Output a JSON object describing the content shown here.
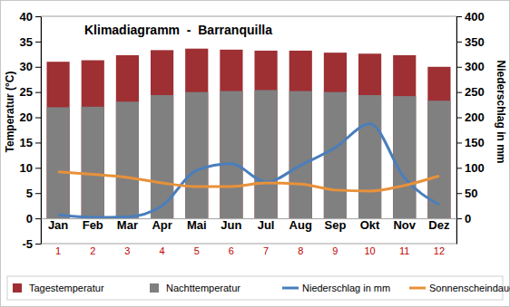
{
  "chart_data": {
    "type": "bar",
    "title": "Klimadiagramm  -  Barranquilla",
    "y_label": "Temperatur (°C)",
    "y2_label": "Niederschlag in mm",
    "categories": [
      "Jan",
      "Feb",
      "Mar",
      "Apr",
      "Mai",
      "Jun",
      "Jul",
      "Aug",
      "Sep",
      "Okt",
      "Nov",
      "Dez"
    ],
    "category_numbers": [
      1,
      2,
      3,
      4,
      5,
      6,
      7,
      8,
      9,
      10,
      11,
      12
    ],
    "ylim": [
      -5,
      40
    ],
    "yticks": [
      -5,
      0,
      5,
      10,
      15,
      20,
      25,
      30,
      35,
      40
    ],
    "y2lim": [
      -50,
      400
    ],
    "y2ticks": [
      0,
      50,
      100,
      150,
      200,
      250,
      300,
      350,
      400
    ],
    "grid": false,
    "stacked": false,
    "legend": "bottom",
    "series": [
      {
        "name": "Tagestemperatur",
        "type": "bar",
        "color": "#9e2f33",
        "values": [
          31,
          31.3,
          32.3,
          33.3,
          33.6,
          33.4,
          33.2,
          33.2,
          32.8,
          32.6,
          32.3,
          30
        ]
      },
      {
        "name": "Nachttemperatur",
        "type": "bar",
        "color": "#808080",
        "values": [
          22,
          22.1,
          23.1,
          24.4,
          25,
          25.2,
          25.4,
          25.2,
          25,
          24.4,
          24.2,
          23.3
        ]
      },
      {
        "name": "Niederschlag in mm",
        "type": "line",
        "axis": "y2",
        "color": "#4a7ebb",
        "values": [
          7,
          2,
          3,
          25,
          95,
          108,
          72,
          105,
          140,
          187,
          80,
          27
        ]
      },
      {
        "name": "Sonnenscheindauer",
        "type": "line",
        "color": "#e8913a",
        "values": [
          9.2,
          8.7,
          8.1,
          7,
          6.3,
          6.3,
          7,
          6.8,
          5.6,
          5.4,
          6.5,
          8.4
        ]
      }
    ]
  }
}
